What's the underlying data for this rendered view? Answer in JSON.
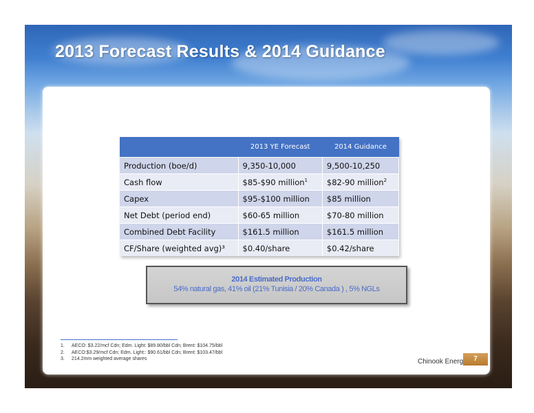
{
  "slide": {
    "title": "2013 Forecast Results & 2014 Guidance",
    "company": "Chinook Energy Inc.",
    "page_number": "7"
  },
  "table": {
    "headers": [
      "",
      "2013 YE Forecast",
      "2014 Guidance"
    ],
    "rows": [
      {
        "label": "Production (boe/d)",
        "c1": "9,350-10,000",
        "c1_sup": "",
        "c2": "9,500-10,250",
        "c2_sup": ""
      },
      {
        "label": "Cash flow",
        "c1": "$85-$90 million",
        "c1_sup": "1",
        "c2": "$82-90 million",
        "c2_sup": "2"
      },
      {
        "label": "Capex",
        "c1": "$95-$100 million",
        "c1_sup": "",
        "c2": "$85 million",
        "c2_sup": ""
      },
      {
        "label": "Net Debt (period end)",
        "c1": "$60-65 million",
        "c1_sup": "",
        "c2": "$70-80 million",
        "c2_sup": ""
      },
      {
        "label": "Combined Debt Facility",
        "c1": "$161.5 million",
        "c1_sup": "",
        "c2": "$161.5 million",
        "c2_sup": ""
      },
      {
        "label": "CF/Share (weighted avg)³",
        "c1": "$0.40/share",
        "c1_sup": "",
        "c2": "$0.42/share",
        "c2_sup": ""
      }
    ]
  },
  "estimate_box": {
    "title": "2014 Estimated Production",
    "text": "54% natural gas, 41% oil (21% Tunisia / 20% Canada ) , 5% NGLs"
  },
  "footnotes": [
    {
      "num": "1.",
      "text": "AECO: $3.22/mcf Cdn; Edm. Light: $89.80/bbl Cdn; Brent: $104.75/bbl"
    },
    {
      "num": "2.",
      "text": "AECO:$3.29/mcf Cdn; Edm. Light:: $90.61/bbl Cdn; Brent: $103.47/bbl"
    },
    {
      "num": "3.",
      "text": "214.2mm weighted average shares"
    }
  ]
}
